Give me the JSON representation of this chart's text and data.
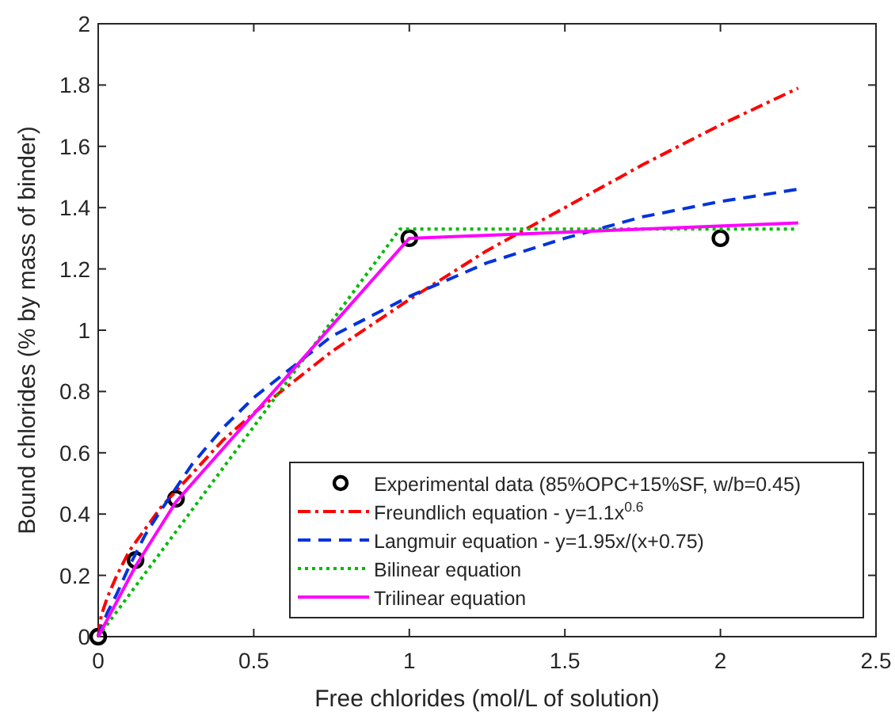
{
  "chart_data": {
    "type": "line",
    "xlabel": "Free chlorides (mol/L of solution)",
    "ylabel": "Bound chlorides (% by mass of binder)",
    "xlim": [
      0,
      2.5
    ],
    "ylim": [
      0,
      2
    ],
    "xticks": [
      0,
      0.5,
      1,
      1.5,
      2,
      2.5
    ],
    "yticks": [
      0,
      0.2,
      0.4,
      0.6,
      0.8,
      1,
      1.2,
      1.4,
      1.6,
      1.8,
      2
    ],
    "grid": false,
    "legend": "bottom right",
    "series": [
      {
        "name": "Experimental data (85%OPC+15%SF, w/b=0.45)",
        "type": "scatter",
        "marker": "circle",
        "color": "#000000",
        "x": [
          0,
          0.12,
          0.25,
          1,
          2
        ],
        "values": [
          0,
          0.25,
          0.45,
          1.3,
          1.3
        ]
      },
      {
        "name": "Freundlich equation - y=1.1x$^{0.6}$",
        "line_style": "dashdot",
        "color": "#ff0000",
        "x": [
          0,
          0.01,
          0.03,
          0.06,
          0.1,
          0.15,
          0.2,
          0.3,
          0.4,
          0.5,
          0.75,
          1,
          1.25,
          1.5,
          1.75,
          2,
          2.25
        ],
        "values": [
          0,
          0.07,
          0.13,
          0.2,
          0.28,
          0.35,
          0.42,
          0.53,
          0.64,
          0.73,
          0.93,
          1.1,
          1.26,
          1.4,
          1.54,
          1.67,
          1.79
        ]
      },
      {
        "name": "Langmuir equation - y=1.95x/(x+0.75)",
        "line_style": "dashed",
        "color": "#0033dd",
        "x": [
          0,
          0.01,
          0.03,
          0.06,
          0.1,
          0.15,
          0.2,
          0.3,
          0.4,
          0.5,
          0.75,
          1,
          1.25,
          1.5,
          1.75,
          2,
          2.25
        ],
        "values": [
          0,
          0.03,
          0.08,
          0.14,
          0.23,
          0.33,
          0.41,
          0.56,
          0.68,
          0.78,
          0.98,
          1.11,
          1.22,
          1.3,
          1.37,
          1.42,
          1.46
        ]
      },
      {
        "name": "Bilinear equation",
        "line_style": "dotted",
        "color": "#00bb00",
        "x": [
          0,
          0.97,
          2.25
        ],
        "values": [
          0,
          1.33,
          1.33
        ]
      },
      {
        "name": "Trilinear equation",
        "line_style": "solid",
        "color": "#ff00ff",
        "x": [
          0,
          0.12,
          0.25,
          1,
          2.25
        ],
        "values": [
          0,
          0.23,
          0.44,
          1.3,
          1.35
        ]
      }
    ]
  }
}
